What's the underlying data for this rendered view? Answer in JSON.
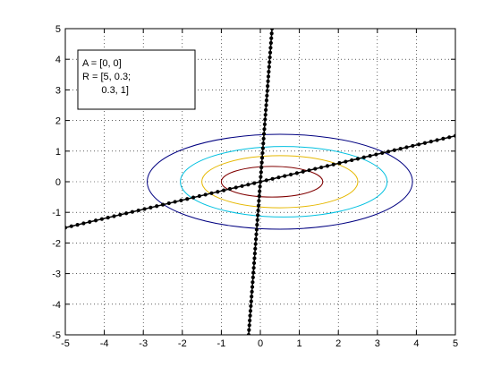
{
  "chart_data": {
    "type": "line",
    "title": "",
    "xlabel": "",
    "ylabel": "",
    "xlim": [
      -5,
      5
    ],
    "ylim": [
      -5,
      5
    ],
    "grid": true,
    "grid_style": "dotted",
    "xticks": [
      -5,
      -4,
      -3,
      -2,
      -1,
      0,
      1,
      2,
      3,
      4,
      5
    ],
    "yticks": [
      -5,
      -4,
      -3,
      -2,
      -1,
      0,
      1,
      2,
      3,
      4,
      5
    ],
    "annotation": {
      "placement": "top-left",
      "lines": [
        "A = [0, 0]",
        "R = [5, 0.3;",
        "       0.3, 1]"
      ]
    },
    "contours": [
      {
        "color": "#800000",
        "center": [
          0.3,
          0.0
        ],
        "semi_axes": [
          1.3,
          0.5
        ],
        "rotation_deg": 0
      },
      {
        "color": "#e6b800",
        "center": [
          0.5,
          0.0
        ],
        "semi_axes": [
          2.0,
          0.85
        ],
        "rotation_deg": 0
      },
      {
        "color": "#00c0e0",
        "center": [
          0.6,
          0.0
        ],
        "semi_axes": [
          2.65,
          1.15
        ],
        "rotation_deg": 0
      },
      {
        "color": "#000080",
        "center": [
          0.5,
          0.0
        ],
        "semi_axes": [
          3.4,
          1.55
        ],
        "rotation_deg": 0
      }
    ],
    "series": [
      {
        "color": "#000000",
        "marker": "dot",
        "points": [
          [
            -5,
            -1.5
          ],
          [
            5,
            1.5
          ]
        ],
        "n_markers": 64
      },
      {
        "color": "#000000",
        "marker": "dot",
        "points": [
          [
            0.3,
            5
          ],
          [
            -0.3,
            -5
          ]
        ],
        "n_markers": 64
      }
    ]
  }
}
